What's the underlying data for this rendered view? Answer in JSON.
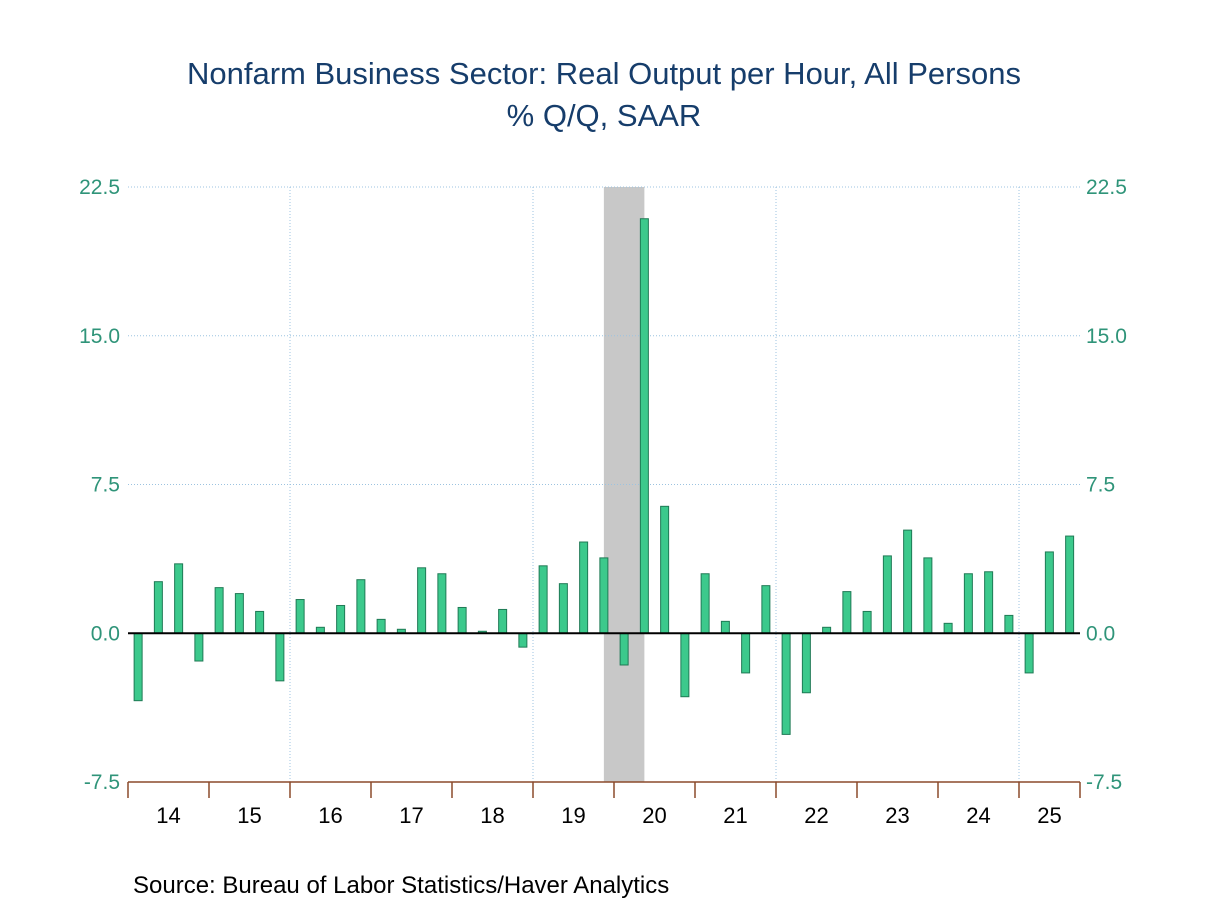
{
  "chart_data": {
    "type": "bar",
    "title": "Nonfarm Business Sector: Real Output per Hour, All Persons",
    "subtitle": "% Q/Q, SAAR",
    "source": "Source:  Bureau of Labor Statistics/Haver Analytics",
    "ylim": [
      -7.5,
      22.5
    ],
    "yticks": [
      "22.5",
      "15.0",
      "7.5",
      "0.0",
      "-7.5"
    ],
    "ytick_values": [
      22.5,
      15.0,
      7.5,
      0.0,
      -7.5
    ],
    "xticks": [
      "14",
      "15",
      "16",
      "17",
      "18",
      "19",
      "20",
      "21",
      "22",
      "23",
      "24",
      "25"
    ],
    "start_year": 2014,
    "frequency": "quarterly",
    "grid": "dotted, vertical every 3 years and horizontal at y ticks",
    "recession_shading": {
      "from": "2020 Q1",
      "to": "2020 Q2"
    },
    "colors": {
      "bar": "#3cc98c",
      "bar_edge": "#1f7a55",
      "axis_text": "#2f9479",
      "title": "#163d6b",
      "recession": "#c8c8c8",
      "axis": "#8b4a2b"
    },
    "values": [
      -3.4,
      2.6,
      3.5,
      -1.4,
      2.3,
      2.0,
      1.1,
      -2.4,
      1.7,
      0.3,
      1.4,
      2.7,
      0.7,
      0.2,
      3.3,
      3.0,
      1.3,
      0.1,
      1.2,
      -0.7,
      3.4,
      2.5,
      4.6,
      3.8,
      -1.6,
      20.9,
      6.4,
      -3.2,
      3.0,
      0.6,
      -2.0,
      2.4,
      -5.1,
      -3.0,
      0.3,
      2.1,
      1.1,
      3.9,
      5.2,
      3.8,
      0.5,
      3.0,
      3.1,
      0.9,
      -2.0,
      4.1,
      4.9
    ]
  }
}
